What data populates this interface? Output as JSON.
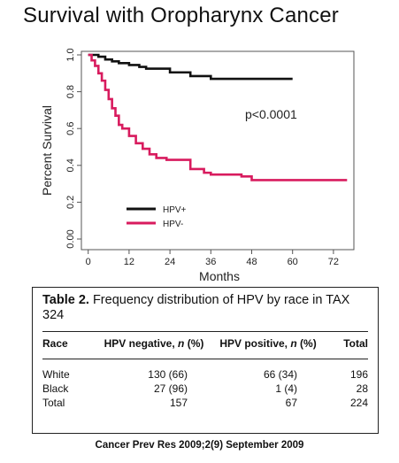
{
  "title": "Survival with Oropharynx Cancer",
  "chart_data": {
    "type": "line",
    "xlabel": "Months",
    "ylabel": "Percent Survival",
    "xlim": [
      -2,
      78
    ],
    "ylim": [
      0,
      1.0
    ],
    "xticks": [
      0,
      12,
      24,
      36,
      48,
      60,
      72
    ],
    "yticks": [
      0.0,
      0.2,
      0.4,
      0.6,
      0.8,
      1.0
    ],
    "ytick_labels": [
      "0.00",
      "0.2",
      "0.4",
      "0.6",
      "0.8",
      "1.0"
    ],
    "annotation": "p<0.0001",
    "legend_position": "bottom-left",
    "grid": false,
    "series": [
      {
        "name": "HPV+",
        "color": "#111111",
        "step_points": [
          [
            0,
            1.0
          ],
          [
            3,
            0.99
          ],
          [
            5,
            0.975
          ],
          [
            7,
            0.965
          ],
          [
            9,
            0.955
          ],
          [
            12,
            0.945
          ],
          [
            15,
            0.935
          ],
          [
            17,
            0.925
          ],
          [
            24,
            0.905
          ],
          [
            30,
            0.885
          ],
          [
            36,
            0.87
          ],
          [
            48,
            0.87
          ],
          [
            60,
            0.87
          ]
        ]
      },
      {
        "name": "HPV-",
        "color": "#d81b5e",
        "step_points": [
          [
            0,
            1.0
          ],
          [
            1,
            0.97
          ],
          [
            2,
            0.94
          ],
          [
            3,
            0.9
          ],
          [
            4,
            0.86
          ],
          [
            5,
            0.81
          ],
          [
            6,
            0.76
          ],
          [
            7,
            0.71
          ],
          [
            8,
            0.67
          ],
          [
            9,
            0.62
          ],
          [
            10,
            0.6
          ],
          [
            12,
            0.56
          ],
          [
            14,
            0.52
          ],
          [
            16,
            0.49
          ],
          [
            18,
            0.46
          ],
          [
            20,
            0.44
          ],
          [
            23,
            0.43
          ],
          [
            26,
            0.43
          ],
          [
            30,
            0.38
          ],
          [
            34,
            0.36
          ],
          [
            36,
            0.35
          ],
          [
            40,
            0.35
          ],
          [
            45,
            0.34
          ],
          [
            48,
            0.32
          ],
          [
            60,
            0.32
          ],
          [
            76,
            0.32
          ]
        ]
      }
    ]
  },
  "table": {
    "caption_bold": "Table 2.",
    "caption_text": " Frequency distribution of HPV by race in TAX 324",
    "headers": {
      "race": "Race",
      "neg": "HPV negative, ",
      "neg_italic": "n",
      "neg_tail": " (%)",
      "pos": "HPV positive, ",
      "pos_italic": "n",
      "pos_tail": " (%)",
      "total": "Total"
    },
    "rows": [
      {
        "race": "White",
        "neg": "130 (66)",
        "pos": "66 (34)",
        "total": "196"
      },
      {
        "race": "Black",
        "neg": "27 (96)",
        "pos": "1 (4)",
        "total": "28"
      },
      {
        "race": "Total",
        "neg": "157",
        "pos": "67",
        "total": "224"
      }
    ]
  },
  "citation": "Cancer Prev Res 2009;2(9) September 2009"
}
